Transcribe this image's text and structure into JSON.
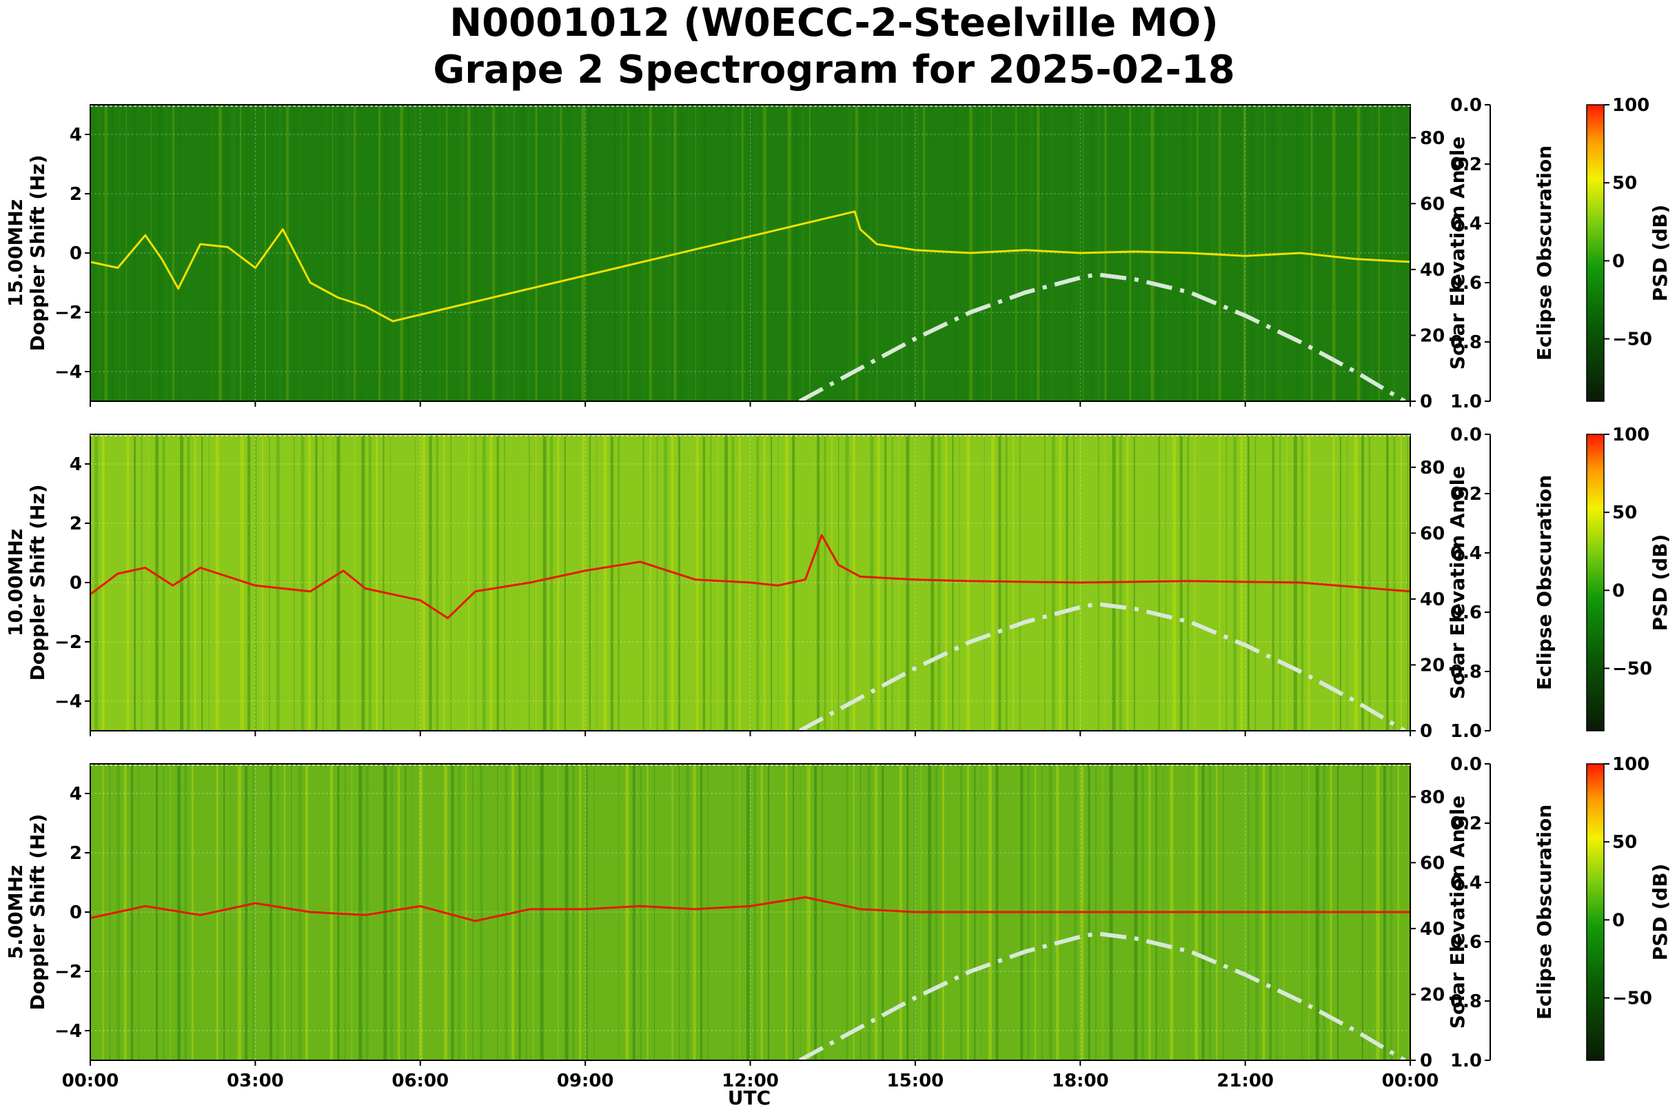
{
  "chart_data": {
    "type": "heatmap",
    "title_line1": "N0001012 (W0ECC-2-Steelville MO)",
    "title_line2": "Grape 2 Spectrogram for 2025-02-18",
    "xlabel": "UTC",
    "x_ticks": [
      "00:00",
      "03:00",
      "06:00",
      "09:00",
      "12:00",
      "15:00",
      "18:00",
      "21:00",
      "00:00"
    ],
    "x_range_hours": [
      0,
      24
    ],
    "ylim_doppler_hz": [
      -5,
      5
    ],
    "y_ticks": [
      "4",
      "2",
      "0",
      "−2",
      "−4"
    ],
    "y_tick_values": [
      4,
      2,
      0,
      -2,
      -4
    ],
    "solar_axis_label": "Solar Elevation Angle",
    "solar_ticks": [
      "80",
      "60",
      "40",
      "20",
      "0"
    ],
    "solar_tick_values": [
      80,
      60,
      40,
      20,
      0
    ],
    "solar_range_deg": [
      0,
      90
    ],
    "eclipse_axis_label": "Eclipse Obscuration",
    "eclipse_ticks": [
      "0.0",
      "0.2",
      "0.4",
      "0.6",
      "0.8",
      "1.0"
    ],
    "eclipse_tick_values": [
      0,
      0.2,
      0.4,
      0.6,
      0.8,
      1.0
    ],
    "colorbar_label": "PSD (dB)",
    "colorbar_ticks": [
      "100",
      "50",
      "0",
      "−50"
    ],
    "colorbar_tick_values": [
      100,
      50,
      0,
      -50
    ],
    "colorbar_range_db": [
      -90,
      100
    ],
    "grid": true,
    "colormap": [
      {
        "stop": 0.0,
        "color": "#0a1a05"
      },
      {
        "stop": 0.25,
        "color": "#0a5a05"
      },
      {
        "stop": 0.45,
        "color": "#129a0a"
      },
      {
        "stop": 0.6,
        "color": "#7ccd10"
      },
      {
        "stop": 0.75,
        "color": "#f2f200"
      },
      {
        "stop": 0.88,
        "color": "#ff9a00"
      },
      {
        "stop": 1.0,
        "color": "#ff1a00"
      }
    ],
    "solar_elevation": {
      "style": "dash-dot",
      "color": "#d8e8d8",
      "hours": [
        12.9,
        14,
        15,
        16,
        17,
        18,
        18.3,
        19,
        20,
        21,
        22,
        23,
        23.9
      ],
      "degrees": [
        0,
        10,
        19,
        27,
        33,
        37.5,
        38.5,
        37,
        33,
        26,
        18,
        9,
        0
      ]
    },
    "panels": [
      {
        "label": "15.00MHz",
        "ylabel": "Doppler Shift (Hz)",
        "background_color": "#1f7d0e",
        "doppler_trace_color": "#f0e000",
        "doppler_trace": {
          "hours": [
            0,
            0.5,
            1,
            1.3,
            1.6,
            2,
            2.5,
            3,
            3.5,
            4,
            4.5,
            5,
            5.5,
            13.9,
            14,
            14.3,
            15,
            16,
            17,
            18,
            19,
            20,
            21,
            22,
            23,
            24
          ],
          "hz": [
            -0.3,
            -0.5,
            0.6,
            -0.2,
            -1.2,
            0.3,
            0.2,
            -0.5,
            0.8,
            -1,
            -1.5,
            -1.8,
            -2.3,
            1.4,
            0.8,
            0.3,
            0.1,
            0,
            0.1,
            0,
            0.05,
            0,
            -0.1,
            0,
            -0.2,
            -0.3
          ]
        }
      },
      {
        "label": "10.00MHz",
        "ylabel": "Doppler Shift (Hz)",
        "background_color": "#8ac81c",
        "doppler_trace_color": "#e81800",
        "doppler_trace": {
          "hours": [
            0,
            0.5,
            1,
            1.5,
            2,
            3,
            4,
            4.6,
            5,
            6,
            6.5,
            7,
            8,
            9,
            10,
            11,
            12,
            12.5,
            13,
            13.3,
            13.6,
            14,
            15,
            16,
            18,
            20,
            22,
            24
          ],
          "hz": [
            -0.4,
            0.3,
            0.5,
            -0.1,
            0.5,
            -0.1,
            -0.3,
            0.4,
            -0.2,
            -0.6,
            -1.2,
            -0.3,
            0,
            0.4,
            0.7,
            0.1,
            0,
            -0.1,
            0.1,
            1.6,
            0.6,
            0.2,
            0.1,
            0.05,
            0,
            0.05,
            0,
            -0.3
          ]
        }
      },
      {
        "label": "5.00MHz",
        "ylabel": "Doppler Shift (Hz)",
        "background_color": "#6ab41a",
        "doppler_trace_color": "#e81800",
        "doppler_trace": {
          "hours": [
            0,
            1,
            2,
            3,
            4,
            5,
            6,
            7,
            8,
            9,
            10,
            11,
            12,
            13,
            14,
            15,
            18,
            21,
            24
          ],
          "hz": [
            -0.2,
            0.2,
            -0.1,
            0.3,
            0,
            -0.1,
            0.2,
            -0.3,
            0.1,
            0.1,
            0.2,
            0.1,
            0.2,
            0.5,
            0.1,
            0,
            0,
            0,
            0
          ]
        }
      }
    ]
  }
}
